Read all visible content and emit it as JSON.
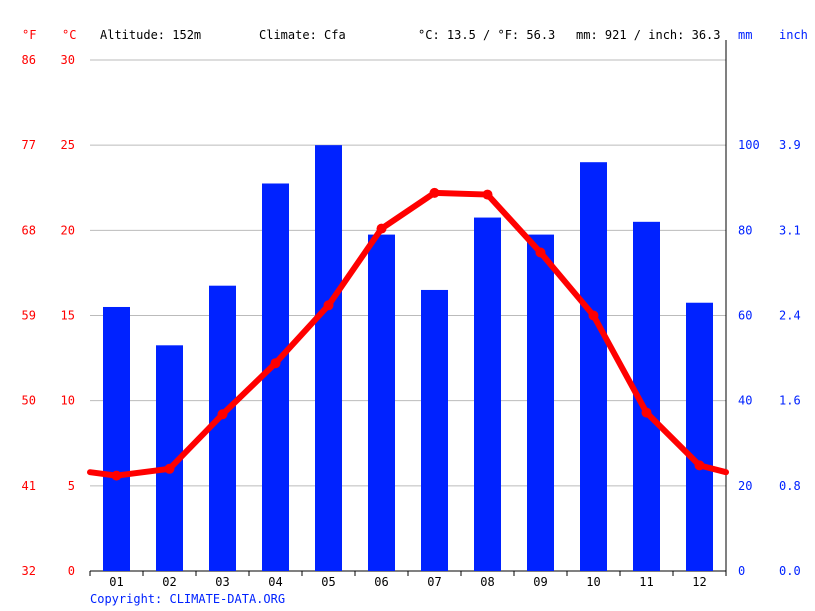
{
  "header": {
    "unit_f": "°F",
    "unit_c": "°C",
    "altitude": "Altitude: 152m",
    "climate": "Climate: Cfa",
    "temp_avg": "°C: 13.5 / °F: 56.3",
    "precip_total": "mm: 921 / inch: 36.3",
    "unit_mm": "mm",
    "unit_inch": "inch"
  },
  "copyright": "Copyright: CLIMATE-DATA.ORG",
  "colors": {
    "temperature": "#ff0000",
    "precipitation": "#0022ff",
    "grid": "#bbbbbb"
  },
  "chart_data": {
    "type": "bar+line",
    "categories": [
      "01",
      "02",
      "03",
      "04",
      "05",
      "06",
      "07",
      "08",
      "09",
      "10",
      "11",
      "12"
    ],
    "series": [
      {
        "type": "bar",
        "axis": "right",
        "values": [
          62,
          53,
          67,
          91,
          100,
          79,
          66,
          83,
          79,
          96,
          82,
          63
        ]
      },
      {
        "type": "line",
        "axis": "left",
        "values": [
          5.6,
          6.0,
          9.2,
          12.2,
          15.6,
          20.1,
          22.2,
          22.1,
          18.7,
          15.0,
          9.3,
          6.2
        ]
      }
    ],
    "left_axis_c": {
      "ticks": [
        0,
        5,
        10,
        15,
        20,
        25,
        30
      ],
      "range": [
        0,
        30
      ]
    },
    "left_axis_f": {
      "ticks": [
        "32",
        "41",
        "50",
        "59",
        "68",
        "77",
        "86"
      ]
    },
    "right_axis_mm": {
      "ticks": [
        0,
        20,
        40,
        60,
        80,
        100
      ],
      "range": [
        0,
        120
      ]
    },
    "right_axis_inch": {
      "ticks": [
        "0.0",
        "0.8",
        "1.6",
        "2.4",
        "3.1",
        "3.9"
      ]
    },
    "line_start": 5.8,
    "line_end": 5.8,
    "grid": true
  }
}
